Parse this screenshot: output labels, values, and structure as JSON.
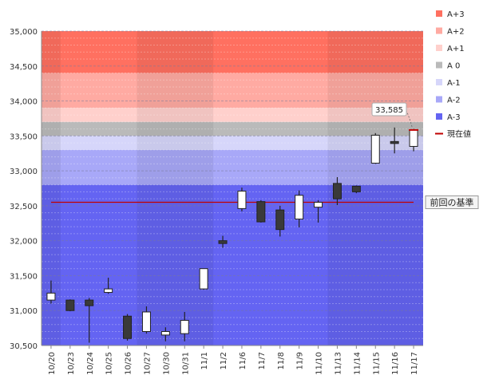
{
  "chart_data": {
    "type": "candlestick",
    "ylim": [
      30500,
      35000
    ],
    "y_ticks": [
      "35,000",
      "34,500",
      "34,000",
      "33,500",
      "33,000",
      "32,500",
      "32,000",
      "31,500",
      "31,000",
      "30,500"
    ],
    "categories": [
      "10/20",
      "10/23",
      "10/24",
      "10/25",
      "10/26",
      "10/27",
      "10/30",
      "10/31",
      "11/1",
      "11/2",
      "11/6",
      "11/7",
      "11/8",
      "11/9",
      "11/10",
      "11/13",
      "11/14",
      "11/15",
      "11/16",
      "11/17"
    ],
    "candles": [
      {
        "open": 31150,
        "high": 31430,
        "low": 31100,
        "close": 31250
      },
      {
        "open": 31150,
        "high": 31160,
        "low": 30990,
        "close": 31000
      },
      {
        "open": 31150,
        "high": 31180,
        "low": 30540,
        "close": 31070
      },
      {
        "open": 31260,
        "high": 31470,
        "low": 31240,
        "close": 31310
      },
      {
        "open": 30920,
        "high": 30950,
        "low": 30570,
        "close": 30600
      },
      {
        "open": 30700,
        "high": 31060,
        "low": 30670,
        "close": 30980
      },
      {
        "open": 30650,
        "high": 30760,
        "low": 30560,
        "close": 30700
      },
      {
        "open": 30670,
        "high": 30980,
        "low": 30560,
        "close": 30860
      },
      {
        "open": 31310,
        "high": 31600,
        "low": 31300,
        "close": 31600
      },
      {
        "open": 32000,
        "high": 32070,
        "low": 31900,
        "close": 31960
      },
      {
        "open": 32460,
        "high": 32760,
        "low": 32420,
        "close": 32710
      },
      {
        "open": 32560,
        "high": 32580,
        "low": 32260,
        "close": 32270
      },
      {
        "open": 32440,
        "high": 32500,
        "low": 32060,
        "close": 32160
      },
      {
        "open": 32310,
        "high": 32720,
        "low": 32190,
        "close": 32650
      },
      {
        "open": 32480,
        "high": 32580,
        "low": 32260,
        "close": 32550
      },
      {
        "open": 32820,
        "high": 32910,
        "low": 32510,
        "close": 32600
      },
      {
        "open": 32780,
        "high": 32790,
        "low": 32680,
        "close": 32700
      },
      {
        "open": 33110,
        "high": 33540,
        "low": 33100,
        "close": 33510
      },
      {
        "open": 33420,
        "high": 33620,
        "low": 33250,
        "close": 33410
      },
      {
        "open": 33350,
        "high": 33600,
        "low": 33280,
        "close": 33585
      }
    ],
    "bands": [
      {
        "name": "A+3",
        "from": 34400,
        "to": 35000,
        "color": "#ff7060"
      },
      {
        "name": "A+2",
        "from": 33900,
        "to": 34400,
        "color": "#ffaaa2"
      },
      {
        "name": "A+1",
        "from": 33700,
        "to": 33900,
        "color": "#ffd0cc"
      },
      {
        "name": "A 0",
        "from": 33500,
        "to": 33700,
        "color": "#bababa"
      },
      {
        "name": "A-1",
        "from": 33300,
        "to": 33500,
        "color": "#d6d6fa"
      },
      {
        "name": "A-2",
        "from": 32800,
        "to": 33300,
        "color": "#a8a8f8"
      },
      {
        "name": "A-3",
        "from": 30500,
        "to": 32800,
        "color": "#6464f2"
      }
    ],
    "legend": [
      {
        "label": "A+3",
        "color": "#ff7060",
        "kind": "box"
      },
      {
        "label": "A+2",
        "color": "#ffaaa2",
        "kind": "box"
      },
      {
        "label": "A+1",
        "color": "#ffd0cc",
        "kind": "box"
      },
      {
        "label": "A 0",
        "color": "#bababa",
        "kind": "box"
      },
      {
        "label": "A-1",
        "color": "#d6d6fa",
        "kind": "box"
      },
      {
        "label": "A-2",
        "color": "#a8a8f8",
        "kind": "box"
      },
      {
        "label": "A-3",
        "color": "#6464f2",
        "kind": "box"
      },
      {
        "label": "現在値",
        "color": "#c00000",
        "kind": "line"
      }
    ],
    "current_value": 33585,
    "current_value_label": "33,585",
    "reference_line": {
      "value": 32550,
      "label": "前回の基準",
      "color": "#c00000"
    },
    "shaded_groups": [
      [
        0,
        0
      ],
      [
        5,
        8
      ],
      [
        15,
        19
      ]
    ]
  }
}
